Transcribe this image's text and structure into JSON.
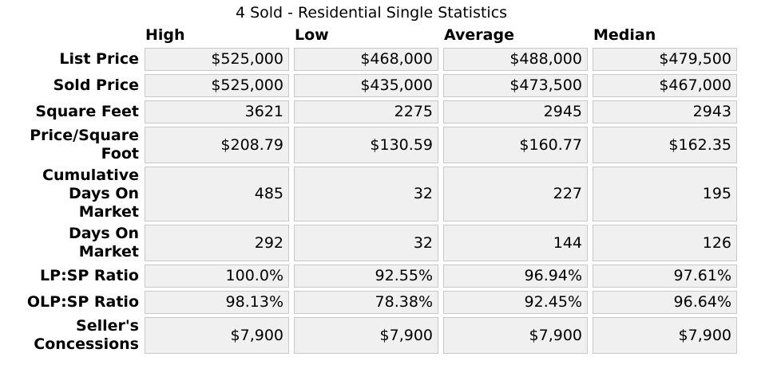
{
  "title": "4 Sold - Residential Single Statistics",
  "colors": {
    "page_bg": "#ffffff",
    "cell_bg": "#f0f0f0",
    "cell_border": "#c8c8c8",
    "text": "#000000"
  },
  "table": {
    "column_headers": [
      "High",
      "Low",
      "Average",
      "Median"
    ],
    "rows": [
      {
        "label": "List Price",
        "values": [
          "$525,000",
          "$468,000",
          "$488,000",
          "$479,500"
        ]
      },
      {
        "label": "Sold Price",
        "values": [
          "$525,000",
          "$435,000",
          "$473,500",
          "$467,000"
        ]
      },
      {
        "label": "Square Feet",
        "values": [
          "3621",
          "2275",
          "2945",
          "2943"
        ]
      },
      {
        "label": "Price/Square Foot",
        "values": [
          "$208.79",
          "$130.59",
          "$160.77",
          "$162.35"
        ]
      },
      {
        "label": "Cumulative Days On Market",
        "values": [
          "485",
          "32",
          "227",
          "195"
        ]
      },
      {
        "label": "Days On Market",
        "values": [
          "292",
          "32",
          "144",
          "126"
        ]
      },
      {
        "label": "LP:SP Ratio",
        "values": [
          "100.0%",
          "92.55%",
          "96.94%",
          "97.61%"
        ]
      },
      {
        "label": "OLP:SP Ratio",
        "values": [
          "98.13%",
          "78.38%",
          "92.45%",
          "96.64%"
        ]
      },
      {
        "label": "Seller's Concessions",
        "values": [
          "$7,900",
          "$7,900",
          "$7,900",
          "$7,900"
        ]
      }
    ]
  },
  "chart_data": {
    "type": "table",
    "title": "4 Sold - Residential Single Statistics",
    "sold_count": 4,
    "columns": [
      "High",
      "Low",
      "Average",
      "Median"
    ],
    "rows": [
      {
        "metric": "List Price",
        "high": 525000,
        "low": 468000,
        "average": 488000,
        "median": 479500,
        "unit": "USD"
      },
      {
        "metric": "Sold Price",
        "high": 525000,
        "low": 435000,
        "average": 473500,
        "median": 467000,
        "unit": "USD"
      },
      {
        "metric": "Square Feet",
        "high": 3621,
        "low": 2275,
        "average": 2945,
        "median": 2943,
        "unit": "sqft"
      },
      {
        "metric": "Price/Square Foot",
        "high": 208.79,
        "low": 130.59,
        "average": 160.77,
        "median": 162.35,
        "unit": "USD"
      },
      {
        "metric": "Cumulative Days On Market",
        "high": 485,
        "low": 32,
        "average": 227,
        "median": 195,
        "unit": "days"
      },
      {
        "metric": "Days On Market",
        "high": 292,
        "low": 32,
        "average": 144,
        "median": 126,
        "unit": "days"
      },
      {
        "metric": "LP:SP Ratio",
        "high": 100.0,
        "low": 92.55,
        "average": 96.94,
        "median": 97.61,
        "unit": "%"
      },
      {
        "metric": "OLP:SP Ratio",
        "high": 98.13,
        "low": 78.38,
        "average": 92.45,
        "median": 96.64,
        "unit": "%"
      },
      {
        "metric": "Seller's Concessions",
        "high": 7900,
        "low": 7900,
        "average": 7900,
        "median": 7900,
        "unit": "USD"
      }
    ]
  }
}
